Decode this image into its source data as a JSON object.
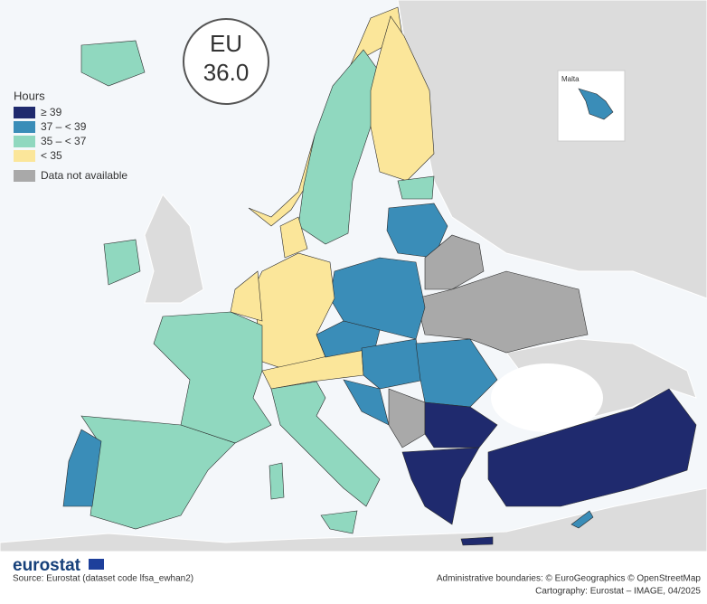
{
  "badge": {
    "label": "EU",
    "value": "36.0"
  },
  "legend": {
    "title": "Hours",
    "items": [
      {
        "label": "≥ 39",
        "color": "#1f2a6e"
      },
      {
        "label": "37 – < 39",
        "color": "#3a8db8"
      },
      {
        "label": "35 – < 37",
        "color": "#90d8bf"
      },
      {
        "label": "< 35",
        "color": "#fbe69a"
      },
      {
        "label": "Data not available",
        "color": "#a9a9a9"
      }
    ]
  },
  "inset": {
    "label": "Malta"
  },
  "logo": "eurostat",
  "source": "Source: Eurostat (dataset code lfsa_ewhan2)",
  "credits": [
    "Administrative boundaries: © EuroGeographics © OpenStreetMap",
    "Cartography: Eurostat – IMAGE, 04/2025"
  ]
}
